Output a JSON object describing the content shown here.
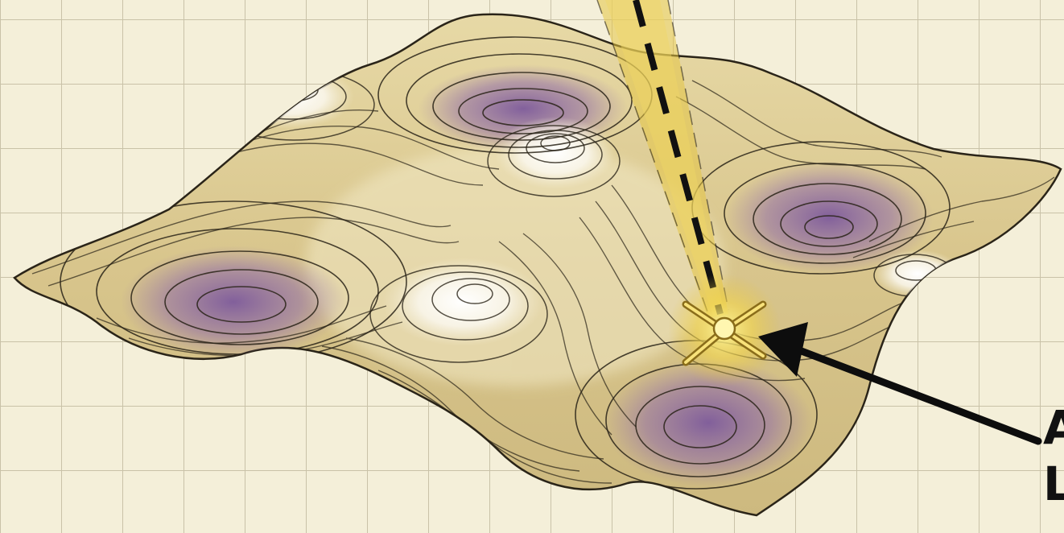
{
  "figure": {
    "edge_text": [
      "A",
      "L"
    ],
    "colors": {
      "paper": "#f4efd9",
      "grid": "#c9c2a8",
      "surface": "#d8c58c",
      "surface_light": "#f2e9c6",
      "valley": "#7d5a9c",
      "peak": "#fbf8ef",
      "contour": "#2a2418",
      "beam": "#e3c444",
      "marker": "#fff6b0",
      "arrow": "#0d0d0d"
    },
    "icons": [
      "grid-paper",
      "contour-surface",
      "light-beam",
      "star-marker",
      "pointer-arrow"
    ]
  }
}
